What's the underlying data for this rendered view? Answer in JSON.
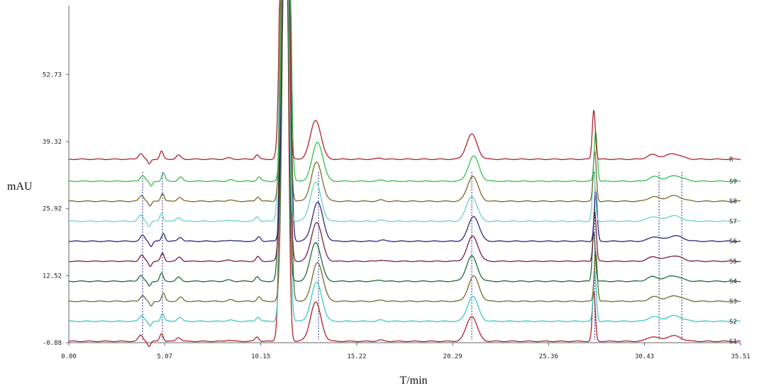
{
  "chart_data": {
    "type": "line",
    "title": "",
    "xlabel": "T/min",
    "ylabel": "mAU",
    "xlim": [
      0,
      35.51
    ],
    "ylim": [
      -0.88,
      66.5
    ],
    "x_ticks": [
      "0.00",
      "5.07",
      "10.15",
      "15.22",
      "20.29",
      "25.36",
      "30.43",
      "35.51"
    ],
    "y_ticks": [
      "-0.88",
      "12.52",
      "25.92",
      "39.32",
      "52.73"
    ],
    "grid": false,
    "stacked_offset": true,
    "series": [
      {
        "name": "S1",
        "color": "#b3202a",
        "baseline": -0.6
      },
      {
        "name": "S2",
        "color": "#3cc9c3",
        "baseline": 3.4
      },
      {
        "name": "S3",
        "color": "#6b6b2f",
        "baseline": 7.4
      },
      {
        "name": "S4",
        "color": "#1f6b3a",
        "baseline": 11.4
      },
      {
        "name": "S5",
        "color": "#7a1f3a",
        "baseline": 15.4
      },
      {
        "name": "S6",
        "color": "#2a2a7a",
        "baseline": 19.4
      },
      {
        "name": "S7",
        "color": "#66d4c4",
        "baseline": 23.4
      },
      {
        "name": "S8",
        "color": "#7a6a2a",
        "baseline": 27.4
      },
      {
        "name": "S9",
        "color": "#2fbf4f",
        "baseline": 31.4
      },
      {
        "name": "R",
        "color": "#b3202a",
        "baseline": 35.8
      }
    ],
    "peaks": [
      {
        "rt": 3.85,
        "height": 1.2,
        "width": 0.12
      },
      {
        "rt": 4.3,
        "height": -1.0,
        "width": 0.08
      },
      {
        "rt": 4.95,
        "height": 1.6,
        "width": 0.09
      },
      {
        "rt": 5.85,
        "height": 0.8,
        "width": 0.12
      },
      {
        "rt": 8.5,
        "height": 0.25,
        "width": 0.15
      },
      {
        "rt": 10.0,
        "height": 0.9,
        "width": 0.1
      },
      {
        "rt": 11.4,
        "height": 90.0,
        "width": 0.15
      },
      {
        "rt": 11.55,
        "height": 50.0,
        "width": 0.12
      },
      {
        "rt": 13.1,
        "height": 7.8,
        "width": 0.28
      },
      {
        "rt": 16.5,
        "height": 0.25,
        "width": 0.15
      },
      {
        "rt": 21.35,
        "height": 5.0,
        "width": 0.28
      },
      {
        "rt": 27.8,
        "height": 10.0,
        "width": 0.08
      },
      {
        "rt": 30.9,
        "height": 0.9,
        "width": 0.28
      },
      {
        "rt": 32.0,
        "height": 1.1,
        "width": 0.4
      }
    ],
    "dashed_markers": [
      3.9,
      4.95,
      13.2,
      21.3,
      27.8,
      31.2,
      32.4
    ]
  }
}
